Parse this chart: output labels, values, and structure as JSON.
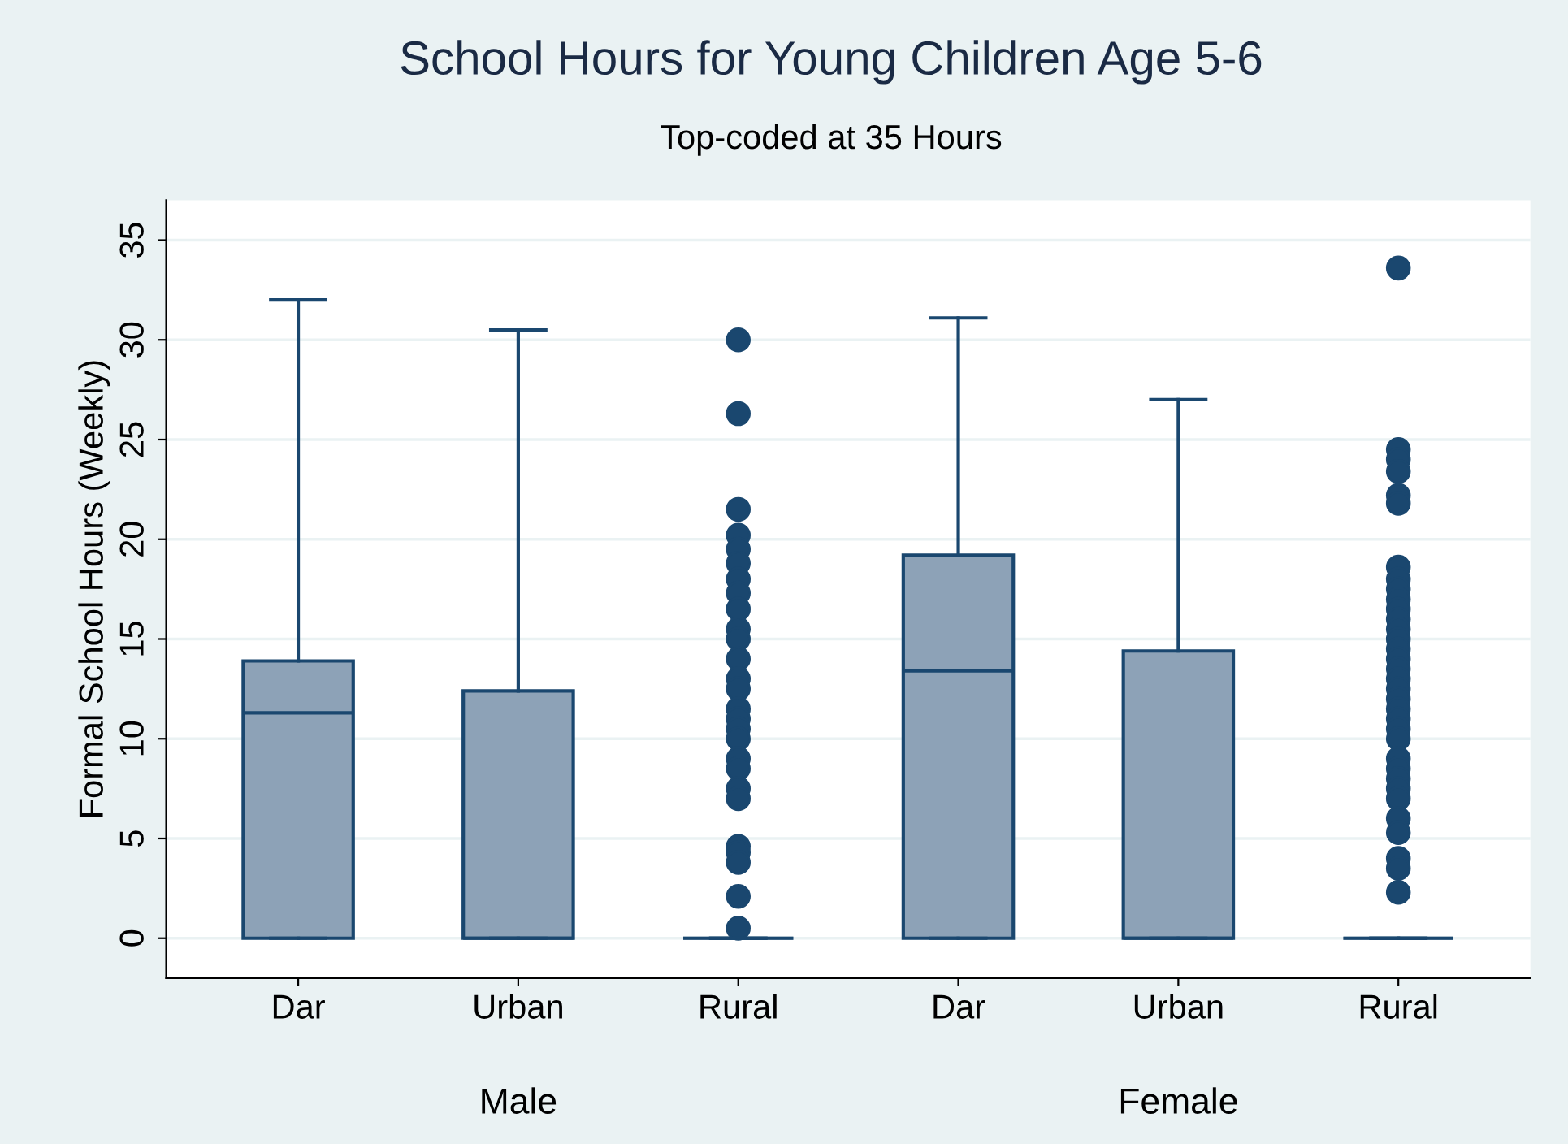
{
  "chart_data": {
    "type": "box",
    "title": "School Hours for Young Children Age 5-6",
    "subtitle": "Top-coded at 35 Hours",
    "ylabel": "Formal School Hours (Weekly)",
    "categories": [
      "Dar",
      "Urban",
      "Rural",
      "Dar",
      "Urban",
      "Rural"
    ],
    "annotations": [
      "Male",
      "Female"
    ],
    "boxes": [
      {
        "low": 0,
        "q1": 0,
        "median": 11.3,
        "q3": 13.9,
        "high": 32
      },
      {
        "low": 0,
        "q1": 0,
        "median": 0,
        "q3": 12.4,
        "high": 30.5
      },
      {
        "low": 0,
        "q1": 0,
        "median": 0,
        "q3": 0,
        "high": 0,
        "outliers": [
          30,
          26.3,
          21.5,
          20.2,
          19.5,
          18.8,
          18,
          17.3,
          16.5,
          15.5,
          15,
          14,
          13,
          12.5,
          11.5,
          11,
          10.5,
          10,
          9,
          8.5,
          7.5,
          7,
          4.6,
          4.3,
          3.8,
          2.1,
          0.5
        ]
      },
      {
        "low": 0,
        "q1": 0,
        "median": 13.4,
        "q3": 19.2,
        "high": 31.1
      },
      {
        "low": 0,
        "q1": 0,
        "median": 0,
        "q3": 14.4,
        "high": 27
      },
      {
        "low": 0,
        "q1": 0,
        "median": 0,
        "q3": 0,
        "high": 0,
        "outliers": [
          33.6,
          24.5,
          24,
          23.4,
          22.2,
          21.8,
          18.6,
          18,
          17.5,
          17,
          16.5,
          16,
          15.5,
          15,
          14.5,
          14,
          13.5,
          13,
          12.5,
          12,
          11.5,
          11,
          10.5,
          10,
          9,
          8.5,
          8,
          7.5,
          7,
          6,
          5.3,
          4,
          3.5,
          2.3
        ]
      }
    ],
    "color": "#8da2b7",
    "ylim": [
      -2,
      37
    ],
    "yticks": [
      0,
      5,
      10,
      15,
      20,
      25,
      30,
      35
    ],
    "grid": "y",
    "legend": false
  }
}
